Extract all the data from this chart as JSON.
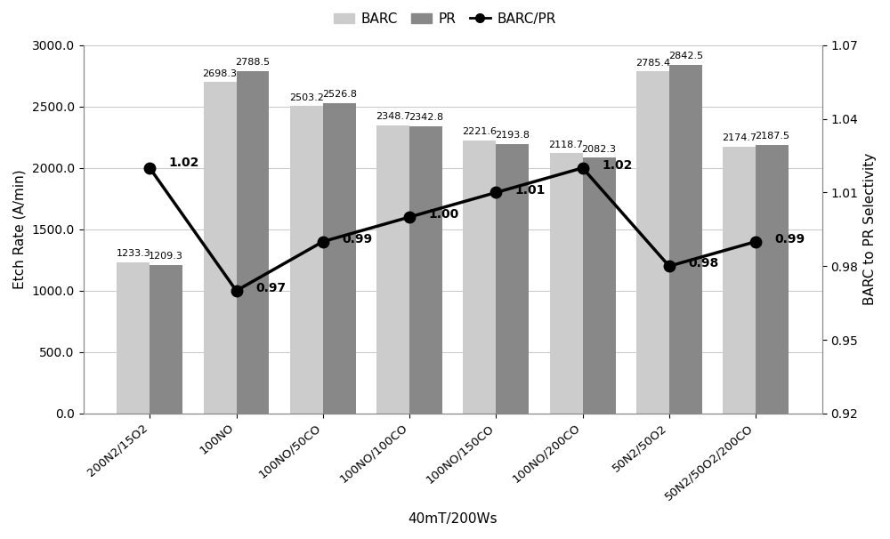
{
  "categories": [
    "200N2/15O2",
    "100NO",
    "100NO/50CO",
    "100NO/100CO",
    "100NO/150CO",
    "100NO/200CO",
    "50N2/50O2",
    "50N2/50O2/200CO"
  ],
  "barc_values": [
    1233.3,
    2698.3,
    2503.2,
    2348.7,
    2221.6,
    2118.7,
    2785.4,
    2174.7
  ],
  "pr_values": [
    1209.3,
    2788.5,
    2526.8,
    2342.8,
    2193.8,
    2082.3,
    2842.5,
    2187.5
  ],
  "ratio_values": [
    1.02,
    0.97,
    0.99,
    1.0,
    1.01,
    1.02,
    0.98,
    0.99
  ],
  "ratio_labels": [
    "1.02",
    "0.97",
    "0.99",
    "1.00",
    "1.01",
    "1.02",
    "0.98",
    "0.99"
  ],
  "barc_color": "#cccccc",
  "pr_color": "#888888",
  "line_color": "#000000",
  "xlabel": "40mT/200Ws",
  "ylabel_left": "Etch Rate (A/min)",
  "ylabel_right": "BARC to PR Selectivity",
  "ylim_left": [
    0,
    3000
  ],
  "ylim_right": [
    0.92,
    1.07
  ],
  "yticks_left": [
    0.0,
    500.0,
    1000.0,
    1500.0,
    2000.0,
    2500.0,
    3000.0
  ],
  "yticks_right": [
    0.92,
    0.95,
    0.98,
    1.01,
    1.04,
    1.07
  ],
  "legend_labels": [
    "BARC",
    "PR",
    "BARC/PR"
  ],
  "bar_width": 0.38,
  "background_color": "#ffffff",
  "grid_color": "#c8c8c8",
  "barc_label_offsets": [
    0,
    0,
    0,
    0,
    0,
    0,
    0,
    0
  ],
  "pr_label_offsets": [
    0,
    0,
    0,
    0,
    0,
    0,
    0,
    0
  ]
}
